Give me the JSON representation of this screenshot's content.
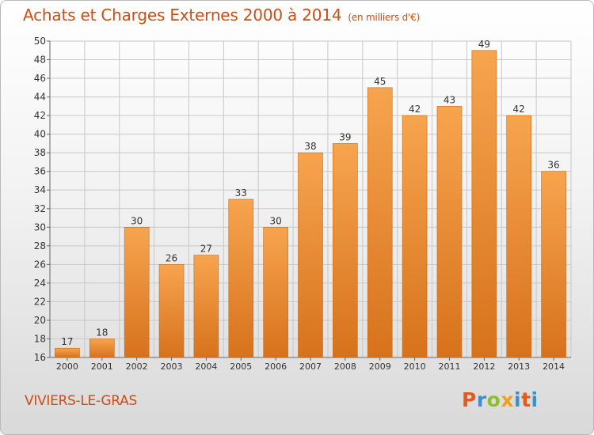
{
  "header": {
    "title": "Achats et Charges Externes 2000 à 2014",
    "unit": "(en milliers d'€)"
  },
  "footer": {
    "commune": "VIVIERS-LE-GRAS",
    "logo": "Proxiti"
  },
  "colors": {
    "accent": "#cc4e14",
    "bar_top": "#f7a44f",
    "bar_bottom": "#d7721c",
    "grid": "#c8c8c8",
    "logo_letters": [
      "#e35a1d",
      "#3a8fcf",
      "#8cbf2a",
      "#f0a020",
      "#3a8fcf",
      "#e35a1d",
      "#3a8fcf"
    ]
  },
  "chart_data": {
    "type": "bar",
    "categories": [
      "2000",
      "2001",
      "2002",
      "2003",
      "2004",
      "2005",
      "2006",
      "2007",
      "2008",
      "2009",
      "2010",
      "2011",
      "2012",
      "2013",
      "2014"
    ],
    "values": [
      17,
      18,
      30,
      26,
      27,
      33,
      30,
      38,
      39,
      45,
      42,
      43,
      49,
      42,
      36
    ],
    "title": "Achats et Charges Externes 2000 à 2014",
    "ylim": [
      16,
      50
    ],
    "yticks": [
      16,
      18,
      20,
      22,
      24,
      26,
      28,
      30,
      32,
      34,
      36,
      38,
      40,
      42,
      44,
      46,
      48,
      50
    ],
    "grid": true,
    "data_labels": true
  }
}
